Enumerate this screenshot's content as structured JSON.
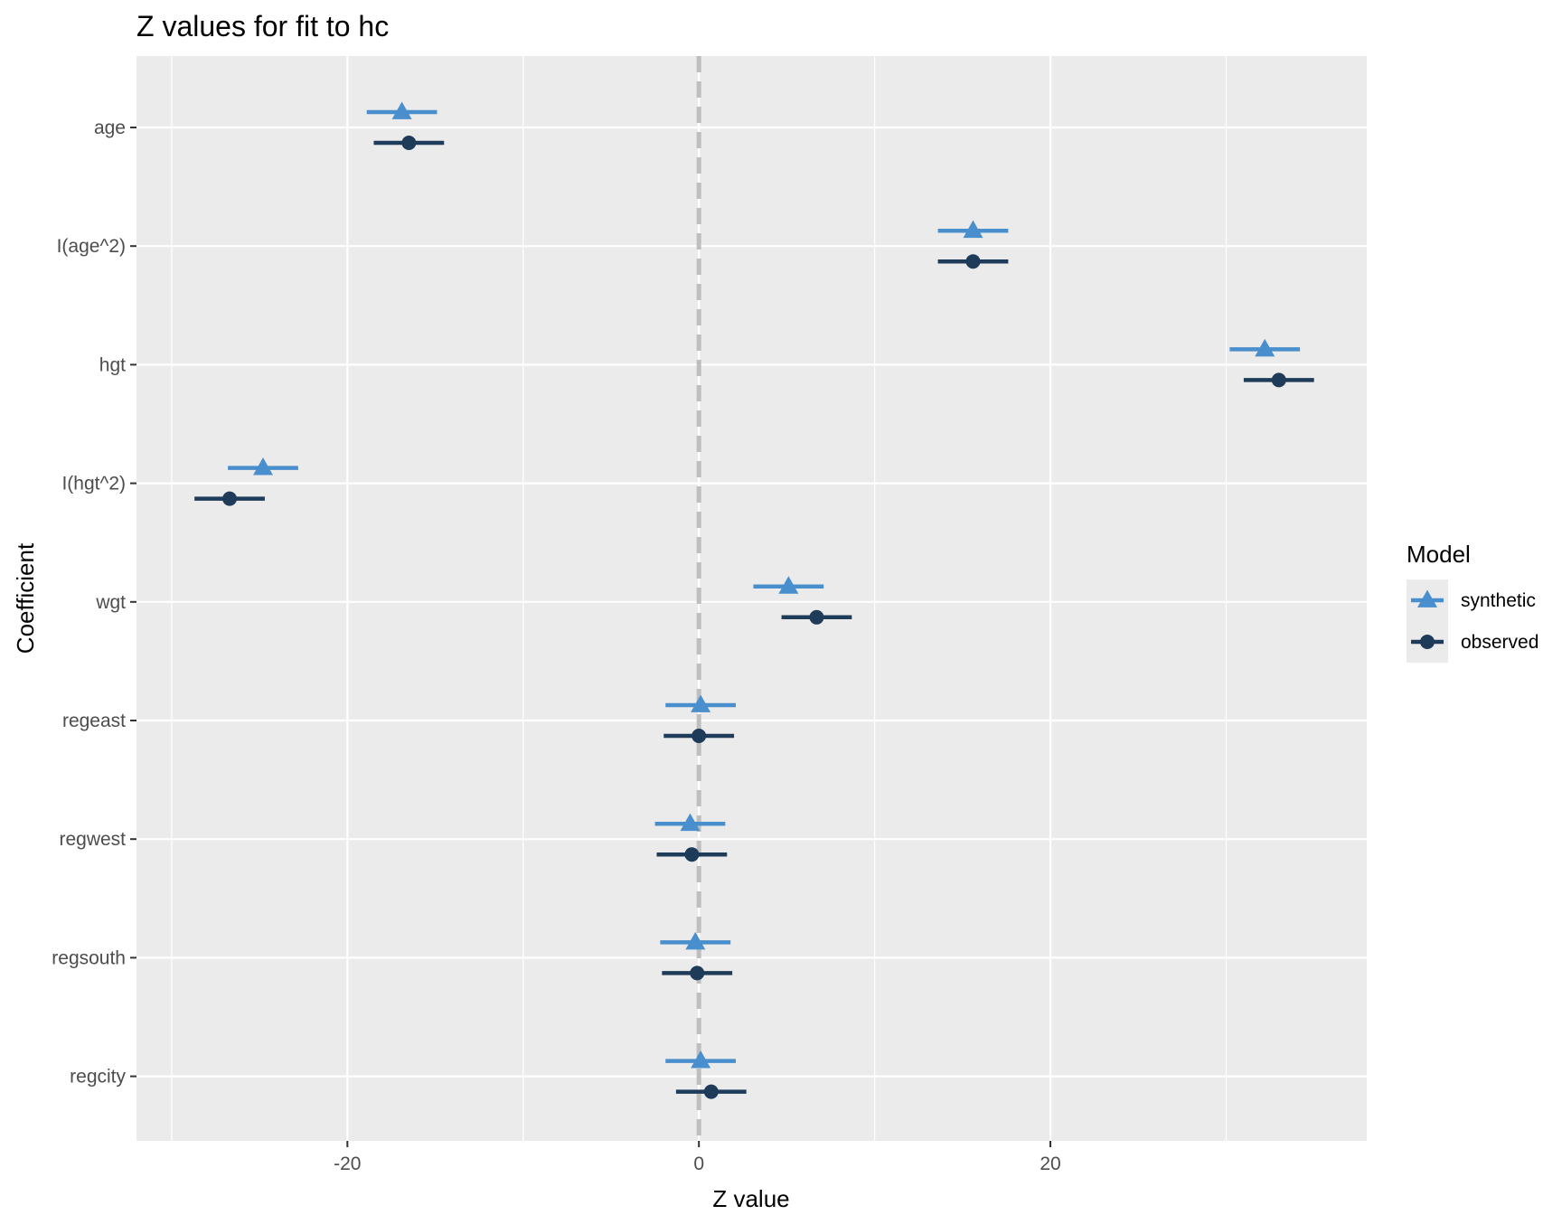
{
  "chart_data": {
    "type": "scatter",
    "title": "Z values for fit to hc",
    "xlabel": "Z value",
    "ylabel": "Coefficient",
    "xlim": [
      -32,
      38
    ],
    "x_ticks": [
      -20,
      0,
      20
    ],
    "x_minor_ticks": [
      -30,
      -10,
      10,
      30
    ],
    "categories": [
      "age",
      "I(age^2)",
      "hgt",
      "I(hgt^2)",
      "wgt",
      "regeast",
      "regwest",
      "regsouth",
      "regcity"
    ],
    "reference_line": 0,
    "grid": true,
    "legend": {
      "title": "Model",
      "position": "right"
    },
    "series": [
      {
        "name": "synthetic",
        "color": "#4a8fcd",
        "marker": "triangle",
        "values": [
          -16.9,
          15.6,
          32.2,
          -24.8,
          5.1,
          0.1,
          -0.5,
          -0.2,
          0.1
        ],
        "ci_low": [
          -18.9,
          13.6,
          30.2,
          -26.8,
          3.1,
          -1.9,
          -2.5,
          -2.2,
          -1.9
        ],
        "ci_high": [
          -14.9,
          17.6,
          34.2,
          -22.8,
          7.1,
          2.1,
          1.5,
          1.8,
          2.1
        ]
      },
      {
        "name": "observed",
        "color": "#1f3b5a",
        "marker": "circle",
        "values": [
          -16.5,
          15.6,
          33.0,
          -26.7,
          6.7,
          0.0,
          -0.4,
          -0.1,
          0.7
        ],
        "ci_low": [
          -18.5,
          13.6,
          31.0,
          -28.7,
          4.7,
          -2.0,
          -2.4,
          -2.1,
          -1.3
        ],
        "ci_high": [
          -14.5,
          17.6,
          35.0,
          -24.7,
          8.7,
          2.0,
          1.6,
          1.9,
          2.7
        ]
      }
    ]
  }
}
